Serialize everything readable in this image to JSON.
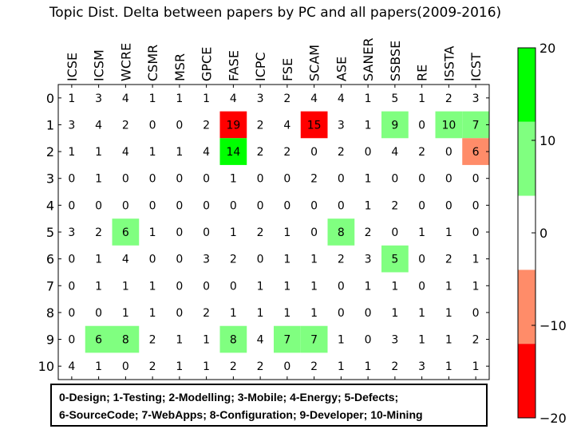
{
  "chart_data": {
    "type": "heatmap",
    "title": "Topic Dist. Delta between papers by PC and all papers(2009-2016)",
    "x_categories": [
      "ICSE",
      "ICSM",
      "WCRE",
      "CSMR",
      "MSR",
      "GPCE",
      "FASE",
      "ICPC",
      "FSE",
      "SCAM",
      "ASE",
      "SANER",
      "SSBSE",
      "RE",
      "ISSTA",
      "ICST"
    ],
    "y_categories": [
      "0",
      "1",
      "2",
      "3",
      "4",
      "5",
      "6",
      "7",
      "8",
      "9",
      "10"
    ],
    "values": [
      [
        1,
        3,
        4,
        1,
        1,
        1,
        4,
        3,
        2,
        4,
        4,
        1,
        5,
        1,
        2,
        3
      ],
      [
        3,
        4,
        2,
        0,
        0,
        2,
        19,
        2,
        4,
        15,
        3,
        1,
        9,
        0,
        10,
        7
      ],
      [
        1,
        1,
        4,
        1,
        1,
        4,
        14,
        2,
        2,
        0,
        2,
        0,
        4,
        2,
        0,
        6
      ],
      [
        0,
        1,
        0,
        0,
        0,
        0,
        1,
        0,
        0,
        2,
        0,
        1,
        0,
        0,
        0,
        0
      ],
      [
        0,
        0,
        0,
        0,
        0,
        0,
        0,
        0,
        0,
        0,
        0,
        1,
        2,
        0,
        0,
        0
      ],
      [
        3,
        2,
        6,
        1,
        0,
        0,
        1,
        2,
        1,
        0,
        8,
        2,
        0,
        1,
        1,
        0
      ],
      [
        0,
        1,
        4,
        0,
        0,
        3,
        2,
        0,
        1,
        1,
        2,
        3,
        5,
        0,
        2,
        1
      ],
      [
        0,
        1,
        1,
        1,
        0,
        0,
        0,
        1,
        1,
        1,
        0,
        1,
        1,
        0,
        1,
        1
      ],
      [
        0,
        0,
        1,
        1,
        0,
        2,
        1,
        1,
        1,
        1,
        0,
        0,
        1,
        1,
        1,
        0
      ],
      [
        0,
        6,
        8,
        2,
        1,
        1,
        8,
        4,
        7,
        7,
        1,
        0,
        3,
        1,
        1,
        2
      ],
      [
        4,
        1,
        0,
        2,
        1,
        1,
        2,
        2,
        0,
        2,
        1,
        1,
        2,
        3,
        1,
        1
      ]
    ],
    "highlighted_cells": [
      {
        "row": 1,
        "col": 6,
        "level": "red"
      },
      {
        "row": 1,
        "col": 9,
        "level": "red"
      },
      {
        "row": 1,
        "col": 12,
        "level": "lightgreen"
      },
      {
        "row": 1,
        "col": 14,
        "level": "lightgreen"
      },
      {
        "row": 1,
        "col": 15,
        "level": "lightgreen"
      },
      {
        "row": 2,
        "col": 6,
        "level": "green"
      },
      {
        "row": 2,
        "col": 15,
        "level": "salmon"
      },
      {
        "row": 5,
        "col": 2,
        "level": "lightgreen"
      },
      {
        "row": 5,
        "col": 10,
        "level": "lightgreen"
      },
      {
        "row": 6,
        "col": 12,
        "level": "lightgreen"
      },
      {
        "row": 9,
        "col": 1,
        "level": "lightgreen"
      },
      {
        "row": 9,
        "col": 2,
        "level": "lightgreen"
      },
      {
        "row": 9,
        "col": 6,
        "level": "lightgreen"
      },
      {
        "row": 9,
        "col": 8,
        "level": "lightgreen"
      },
      {
        "row": 9,
        "col": 9,
        "level": "lightgreen"
      }
    ],
    "colorbar": {
      "range": [
        -20,
        20
      ],
      "ticks": [
        20,
        10,
        0,
        -10,
        -20
      ],
      "tick_labels": [
        "20",
        "10",
        "0",
        "−10",
        "−20"
      ],
      "bands": [
        {
          "from": 12,
          "to": 20,
          "level": "green"
        },
        {
          "from": 4,
          "to": 12,
          "level": "lightgreen"
        },
        {
          "from": -4,
          "to": 4,
          "level": "white"
        },
        {
          "from": -12,
          "to": -4,
          "level": "salmon"
        },
        {
          "from": -20,
          "to": -12,
          "level": "red"
        }
      ]
    },
    "colors": {
      "red": "#ff0000",
      "salmon": "#ff8c69",
      "white": "#ffffff",
      "lightgreen": "#80ff80",
      "green": "#00ff00"
    },
    "legend_lines": [
      "0-Design; 1-Testing; 2-Modelling; 3-Mobile; 4-Energy; 5-Defects;",
      "6-SourceCode; 7-WebApps; 8-Configuration; 9-Developer; 10-Mining"
    ]
  }
}
